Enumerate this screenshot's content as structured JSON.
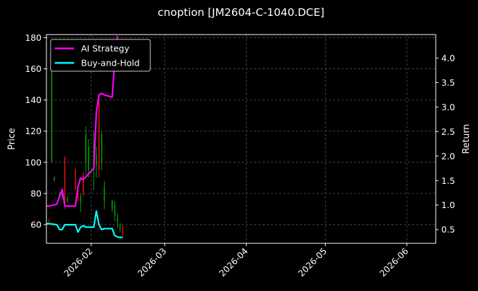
{
  "chart_data": {
    "type": "line",
    "title": "cnoption [JM2604-C-1040.DCE]",
    "xlabel": "",
    "ylabel": "Price",
    "y2label": "Return",
    "x_range": [
      "2026-01-15",
      "2026-06-12"
    ],
    "ylim": [
      48,
      182
    ],
    "y2lim": [
      0.22,
      4.48
    ],
    "x_ticks": [
      "2026-02",
      "2026-03",
      "2026-04",
      "2026-05",
      "2026-06"
    ],
    "y_ticks": [
      60,
      80,
      100,
      120,
      140,
      160,
      180
    ],
    "y2_ticks": [
      "0.5",
      "1.0",
      "1.5",
      "2.0",
      "2.5",
      "3.0",
      "3.5",
      "4.0"
    ],
    "grid": true,
    "legend_position": "top-left",
    "colors": {
      "background": "#000000",
      "ai_strategy": "#ff00ff",
      "buy_and_hold": "#00ffff",
      "candle_up": "#00a000",
      "candle_down": "#e01010",
      "grid": "#555555"
    },
    "series": [
      {
        "name": "AI Strategy",
        "axis": "right",
        "x": [
          "2026-01-15",
          "2026-01-16",
          "2026-01-19",
          "2026-01-20",
          "2026-01-21",
          "2026-01-22",
          "2026-01-23",
          "2026-01-26",
          "2026-01-27",
          "2026-01-28",
          "2026-01-29",
          "2026-01-30",
          "2026-02-02",
          "2026-02-03",
          "2026-02-04",
          "2026-02-05",
          "2026-02-06",
          "2026-02-09",
          "2026-02-10",
          "2026-02-11"
        ],
        "values": [
          0.98,
          0.98,
          1.02,
          1.18,
          1.32,
          0.98,
          0.98,
          0.98,
          1.38,
          1.55,
          1.52,
          1.58,
          1.75,
          2.9,
          3.25,
          3.28,
          3.25,
          3.2,
          3.95,
          4.45
        ]
      },
      {
        "name": "Buy-and-Hold",
        "axis": "right",
        "x": [
          "2026-01-15",
          "2026-01-16",
          "2026-01-19",
          "2026-01-20",
          "2026-01-21",
          "2026-01-22",
          "2026-01-23",
          "2026-01-26",
          "2026-01-27",
          "2026-01-28",
          "2026-01-29",
          "2026-01-30",
          "2026-02-02",
          "2026-02-03",
          "2026-02-04",
          "2026-02-05",
          "2026-02-06",
          "2026-02-09",
          "2026-02-10",
          "2026-02-11",
          "2026-02-12",
          "2026-02-13"
        ],
        "values": [
          0.62,
          0.62,
          0.6,
          0.5,
          0.5,
          0.6,
          0.6,
          0.6,
          0.45,
          0.55,
          0.58,
          0.55,
          0.55,
          0.88,
          0.6,
          0.5,
          0.52,
          0.52,
          0.38,
          0.35,
          0.34,
          0.34
        ]
      }
    ],
    "candles": [
      {
        "date": "2026-01-15",
        "open": 60,
        "high": 62,
        "low": 58,
        "close": 61
      },
      {
        "date": "2026-01-16",
        "open": 63,
        "high": 64,
        "low": 61,
        "close": 62
      },
      {
        "date": "2026-01-17",
        "open": 100,
        "high": 177,
        "low": 100,
        "close": 170
      },
      {
        "date": "2026-01-18",
        "open": 88,
        "high": 91,
        "low": 88,
        "close": 90
      },
      {
        "date": "2026-01-20",
        "open": 78,
        "high": 81,
        "low": 77,
        "close": 80
      },
      {
        "date": "2026-01-21",
        "open": 78,
        "high": 82,
        "low": 76,
        "close": 81
      },
      {
        "date": "2026-01-22",
        "open": 103,
        "high": 104,
        "low": 70,
        "close": 72
      },
      {
        "date": "2026-01-23",
        "open": 75,
        "high": 78,
        "low": 74,
        "close": 77
      },
      {
        "date": "2026-01-26",
        "open": 95,
        "high": 96,
        "low": 82,
        "close": 83
      },
      {
        "date": "2026-01-27",
        "open": 82,
        "high": 84,
        "low": 75,
        "close": 76
      },
      {
        "date": "2026-01-28",
        "open": 74,
        "high": 80,
        "low": 68,
        "close": 78
      },
      {
        "date": "2026-01-29",
        "open": 92,
        "high": 94,
        "low": 78,
        "close": 80
      },
      {
        "date": "2026-01-30",
        "open": 100,
        "high": 123,
        "low": 92,
        "close": 118
      },
      {
        "date": "2026-01-31",
        "open": 95,
        "high": 115,
        "low": 90,
        "close": 110
      },
      {
        "date": "2026-02-02",
        "open": 95,
        "high": 120,
        "low": 82,
        "close": 112
      },
      {
        "date": "2026-02-03",
        "open": 98,
        "high": 110,
        "low": 90,
        "close": 105
      },
      {
        "date": "2026-02-04",
        "open": 140,
        "high": 143,
        "low": 90,
        "close": 95
      },
      {
        "date": "2026-02-05",
        "open": 100,
        "high": 120,
        "low": 95,
        "close": 118
      },
      {
        "date": "2026-02-06",
        "open": 75,
        "high": 88,
        "low": 70,
        "close": 84
      },
      {
        "date": "2026-02-09",
        "open": 70,
        "high": 76,
        "low": 68,
        "close": 75
      },
      {
        "date": "2026-02-10",
        "open": 66,
        "high": 75,
        "low": 62,
        "close": 73
      },
      {
        "date": "2026-02-11",
        "open": 62,
        "high": 67,
        "low": 58,
        "close": 64
      },
      {
        "date": "2026-02-12",
        "open": 57,
        "high": 61,
        "low": 55,
        "close": 60
      },
      {
        "date": "2026-02-13",
        "open": 58,
        "high": 60,
        "low": 52,
        "close": 54
      }
    ]
  }
}
